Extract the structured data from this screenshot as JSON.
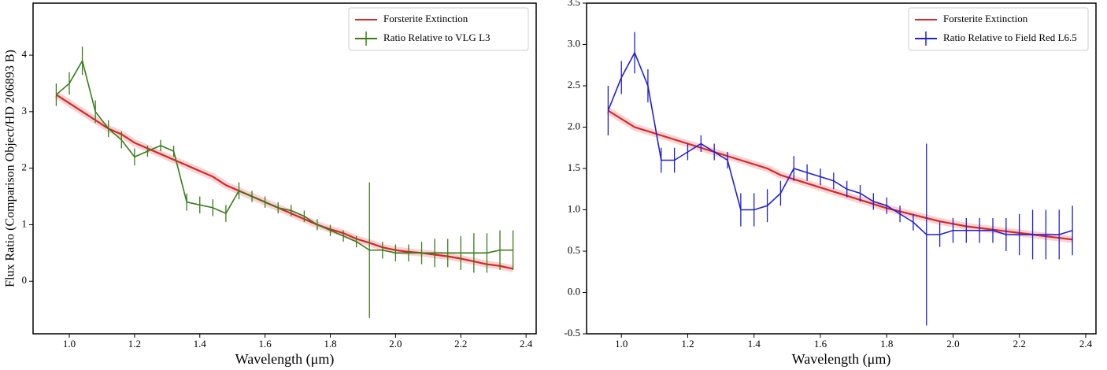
{
  "chart_data": [
    {
      "type": "errorbar-line",
      "ylabel": "Flux Ratio (Comparison Object/HD 206893 B)",
      "xlabel": "Wavelength (μm)",
      "xlim": [
        0.889,
        2.431
      ],
      "ylim": [
        -0.93,
        4.92
      ],
      "xticks": [
        {
          "value": 1,
          "label": "1.0"
        },
        1.2,
        1.4,
        1.6,
        1.8,
        {
          "value": 2,
          "label": "2.0"
        },
        2.2,
        2.4
      ],
      "yticks": [
        0,
        1,
        2,
        3,
        4
      ],
      "legend": "upper right",
      "x": [
        0.96,
        1.0,
        1.04,
        1.08,
        1.12,
        1.16,
        1.2,
        1.24,
        1.28,
        1.32,
        1.36,
        1.4,
        1.44,
        1.48,
        1.52,
        1.56,
        1.6,
        1.64,
        1.68,
        1.72,
        1.76,
        1.8,
        1.84,
        1.88,
        1.92,
        1.96,
        2.0,
        2.04,
        2.08,
        2.12,
        2.16,
        2.2,
        2.24,
        2.28,
        2.32,
        2.36
      ],
      "series": [
        {
          "name": "Forsterite Extinction",
          "color": "#d62728",
          "values": [
            3.3,
            3.15,
            3.0,
            2.85,
            2.7,
            2.6,
            2.45,
            2.35,
            2.25,
            2.15,
            2.05,
            1.95,
            1.85,
            1.7,
            1.6,
            1.5,
            1.4,
            1.3,
            1.2,
            1.1,
            1.0,
            0.92,
            0.85,
            0.75,
            0.68,
            0.6,
            0.55,
            0.52,
            0.5,
            0.47,
            0.44,
            0.4,
            0.35,
            0.3,
            0.27,
            0.22
          ]
        },
        {
          "name": "Ratio Relative to VLG L3",
          "color": "#3a7a1a",
          "values": [
            3.3,
            3.5,
            3.9,
            3.0,
            2.7,
            2.5,
            2.2,
            2.3,
            2.4,
            2.3,
            1.4,
            1.35,
            1.3,
            1.2,
            1.6,
            1.5,
            1.4,
            1.3,
            1.25,
            1.15,
            1.0,
            0.9,
            0.8,
            0.7,
            0.55,
            0.55,
            0.5,
            0.5,
            0.5,
            0.5,
            0.5,
            0.5,
            0.5,
            0.5,
            0.55,
            0.55
          ],
          "errors": [
            0.2,
            0.2,
            0.25,
            0.2,
            0.15,
            0.15,
            0.15,
            0.1,
            0.1,
            0.1,
            0.15,
            0.15,
            0.15,
            0.15,
            0.15,
            0.1,
            0.1,
            0.1,
            0.1,
            0.1,
            0.1,
            0.1,
            0.1,
            0.1,
            1.2,
            0.15,
            0.15,
            0.15,
            0.2,
            0.25,
            0.25,
            0.3,
            0.35,
            0.35,
            0.35,
            0.35
          ]
        }
      ]
    },
    {
      "type": "errorbar-line",
      "xlabel": "Wavelength (μm)",
      "xlim": [
        0.895,
        2.431
      ],
      "ylim": [
        -0.5,
        3.5
      ],
      "xticks": [
        {
          "value": 1,
          "label": "1.0"
        },
        1.2,
        1.4,
        1.6,
        1.8,
        {
          "value": 2,
          "label": "2.0"
        },
        2.2,
        2.4
      ],
      "yticks": [
        -0.5,
        {
          "value": 0,
          "label": "0.0"
        },
        0.5,
        {
          "value": 1,
          "label": "1.0"
        },
        1.5,
        {
          "value": 2,
          "label": "2.0"
        },
        2.5,
        {
          "value": 3,
          "label": "3.0"
        },
        3.5
      ],
      "legend": "upper right",
      "x": [
        0.96,
        1.0,
        1.04,
        1.08,
        1.12,
        1.16,
        1.2,
        1.24,
        1.28,
        1.32,
        1.36,
        1.4,
        1.44,
        1.48,
        1.52,
        1.56,
        1.6,
        1.64,
        1.68,
        1.72,
        1.76,
        1.8,
        1.84,
        1.88,
        1.92,
        1.96,
        2.0,
        2.04,
        2.08,
        2.12,
        2.16,
        2.2,
        2.24,
        2.28,
        2.32,
        2.36
      ],
      "series": [
        {
          "name": "Forsterite Extinction",
          "color": "#d62728",
          "values": [
            2.2,
            2.1,
            2.0,
            1.95,
            1.9,
            1.85,
            1.8,
            1.75,
            1.7,
            1.65,
            1.6,
            1.55,
            1.5,
            1.42,
            1.37,
            1.32,
            1.27,
            1.22,
            1.17,
            1.12,
            1.07,
            1.02,
            0.98,
            0.94,
            0.9,
            0.86,
            0.83,
            0.8,
            0.78,
            0.76,
            0.74,
            0.72,
            0.7,
            0.68,
            0.66,
            0.64
          ]
        },
        {
          "name": "Ratio Relative to Field Red L6.5",
          "color": "#1f1fd6",
          "values": [
            2.2,
            2.6,
            2.9,
            2.5,
            1.6,
            1.6,
            1.7,
            1.8,
            1.7,
            1.6,
            1.0,
            1.0,
            1.05,
            1.2,
            1.5,
            1.45,
            1.4,
            1.35,
            1.25,
            1.2,
            1.1,
            1.05,
            0.95,
            0.85,
            0.7,
            0.7,
            0.75,
            0.75,
            0.75,
            0.75,
            0.7,
            0.7,
            0.7,
            0.7,
            0.7,
            0.75
          ],
          "errors": [
            0.3,
            0.2,
            0.25,
            0.2,
            0.15,
            0.15,
            0.1,
            0.1,
            0.1,
            0.1,
            0.2,
            0.2,
            0.2,
            0.15,
            0.15,
            0.1,
            0.1,
            0.1,
            0.1,
            0.1,
            0.1,
            0.1,
            0.1,
            0.1,
            1.1,
            0.15,
            0.15,
            0.15,
            0.15,
            0.15,
            0.2,
            0.25,
            0.3,
            0.3,
            0.3,
            0.3
          ]
        }
      ]
    }
  ]
}
